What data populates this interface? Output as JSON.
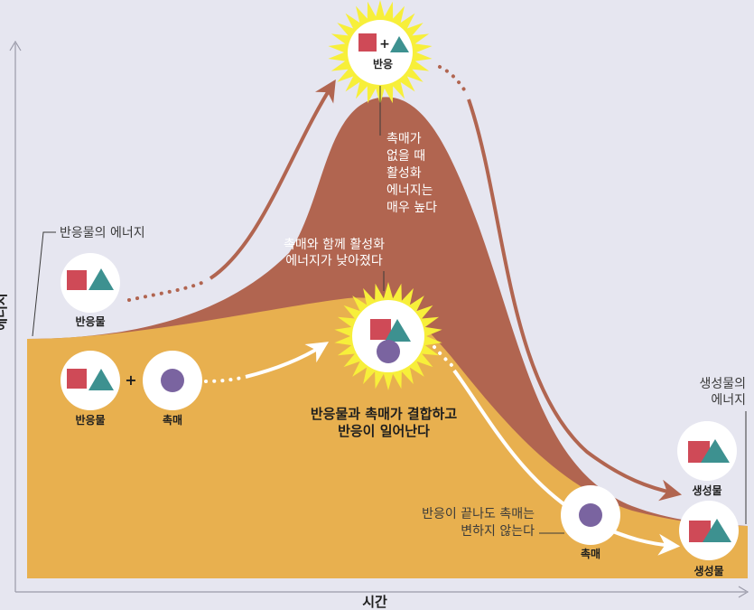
{
  "axis": {
    "y_label": "에너지",
    "x_label": "시간"
  },
  "labels": {
    "reactant_energy": "반응물의 에너지",
    "product_energy": [
      "생성물의",
      "에너지"
    ],
    "peak_reaction": "반응",
    "no_catalyst_note": [
      "촉매가",
      "없을 때",
      "활성화",
      "에너지는",
      "매우 높다"
    ],
    "with_catalyst_note": [
      "촉매와 함께 활성화",
      "에너지가 낮아졌다"
    ],
    "combine_note": [
      "반응물과 촉매가 결합하고",
      "반응이 일어난다"
    ],
    "unchanged_note": [
      "반응이 끝나도 촉매는",
      "변하지 않는다"
    ]
  },
  "nodes": {
    "reactant_top": "반응물",
    "reactant_bottom": "반응물",
    "catalyst_left": "촉매",
    "catalyst_right": "촉매",
    "product_top": "생성물",
    "product_bottom": "생성물"
  },
  "symbols": {
    "plus": "+"
  },
  "colors": {
    "background": "#e6e6f0",
    "uncatalyzed_area": "#b16550",
    "catalyzed_area": "#e8b04f",
    "arrow_uncatalyzed": "#b16550",
    "arrow_catalyzed": "#ffffff",
    "reactant_square": "#cf4a57",
    "reactant_triangle": "#3d9190",
    "catalyst_circle": "#7a64a0",
    "burst": "#f7ef3a"
  }
}
